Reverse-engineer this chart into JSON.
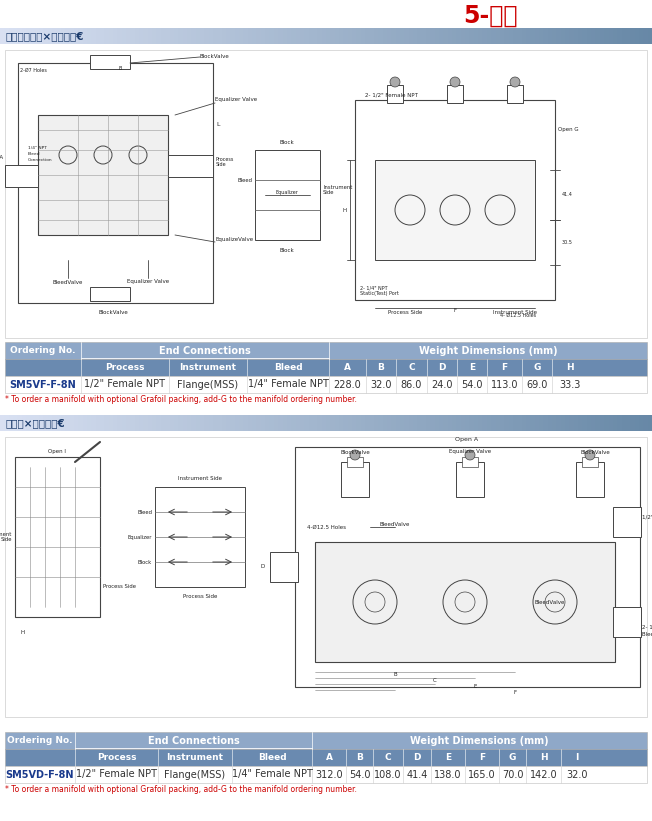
{
  "title": "5-阀组",
  "section1_label": "埝嗒京伴勒嗒×媛涂业孷€",
  "section2_label": "书媛嗒×媛涂业孷€",
  "table1_data": [
    "SM5VF-F-8N",
    "1/2\" Female NPT",
    "Flange(MSS)",
    "1/4\" Female NPT",
    "228.0",
    "32.0",
    "86.0",
    "24.0",
    "54.0",
    "113.0",
    "69.0",
    "33.3"
  ],
  "table1_note": "* To order a manifold with optional Grafoil packing, add-G to the manifold ordering number.",
  "table2_data": [
    "SM5VD-F-8N",
    "1/2\" Female NPT",
    "Flange(MSS)",
    "1/4\" Female NPT",
    "312.0",
    "54.0",
    "108.0",
    "41.4",
    "138.0",
    "165.0",
    "70.0",
    "142.0",
    "32.0"
  ],
  "table2_note": "* To order a manifold with optional Grafoil packing, add-G to the manifold ordering number.",
  "title_color": "#cc0000",
  "header_bg": "#8fa8c8",
  "header2_bg": "#6a8ab0",
  "section_label_color": "#1a3a6b",
  "note_color": "#cc0000",
  "bg_color": "#ffffff",
  "diagram_border": "#888888",
  "line_color": "#444444"
}
